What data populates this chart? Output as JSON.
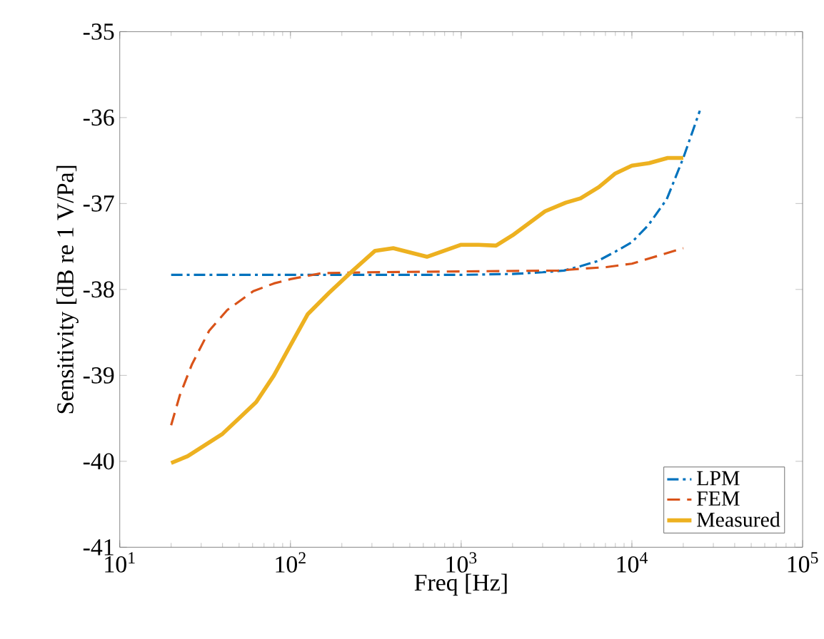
{
  "chart_data": {
    "type": "line",
    "xlabel": "Freq [Hz]",
    "ylabel": "Sensitivity [dB re 1 V/Pa]",
    "log": "x",
    "xlim": [
      10,
      100000
    ],
    "ylim": [
      -41,
      -35
    ],
    "xticks": [
      {
        "value": 10,
        "label": "10$^{1}$"
      },
      {
        "value": 100,
        "label": "10$^{2}$"
      },
      {
        "value": 1000,
        "label": "10$^{3}$"
      },
      {
        "value": 10000,
        "label": "10$^{4}$"
      },
      {
        "value": 100000,
        "label": "10$^{5}$"
      }
    ],
    "yticks": [
      -41,
      -40,
      -39,
      -38,
      -37,
      -36,
      -35
    ],
    "grid": false,
    "legend": "bottom right",
    "series": [
      {
        "name": "LPM",
        "color": "#0072bd",
        "line_style": "dashdot",
        "x": [
          20,
          100,
          1000,
          2000,
          3000,
          4000,
          5000,
          6300,
          8000,
          10000,
          12500,
          16000,
          20000,
          25000
        ],
        "values": [
          -37.83,
          -37.83,
          -37.83,
          -37.82,
          -37.8,
          -37.78,
          -37.73,
          -37.67,
          -37.56,
          -37.45,
          -37.25,
          -36.95,
          -36.47,
          -35.92
        ]
      },
      {
        "name": "FEM",
        "color": "#d95319",
        "line_style": "dashed",
        "x": [
          20,
          22.5,
          26.5,
          33.4,
          42.6,
          60.6,
          80,
          100,
          153,
          290,
          1000,
          3700,
          5000,
          7100,
          10000,
          20000
        ],
        "values": [
          -39.58,
          -39.23,
          -38.87,
          -38.48,
          -38.24,
          -38.02,
          -37.93,
          -37.88,
          -37.81,
          -37.8,
          -37.79,
          -37.78,
          -37.76,
          -37.74,
          -37.7,
          -37.52
        ]
      },
      {
        "name": "Measured",
        "color": "#edb120",
        "line_style": "solid",
        "x": [
          20,
          25,
          40,
          50,
          63,
          80,
          100,
          126,
          168,
          232,
          313,
          400,
          630,
          1000,
          1260,
          1600,
          2000,
          3100,
          4100,
          5000,
          6400,
          8000,
          10000,
          12600,
          16200,
          20000
        ],
        "values": [
          -40.02,
          -39.94,
          -39.68,
          -39.5,
          -39.31,
          -39.0,
          -38.65,
          -38.29,
          -38.04,
          -37.78,
          -37.55,
          -37.52,
          -37.62,
          -37.48,
          -37.48,
          -37.49,
          -37.37,
          -37.09,
          -36.99,
          -36.94,
          -36.81,
          -36.65,
          -36.56,
          -36.53,
          -36.47,
          -36.47
        ]
      }
    ]
  }
}
